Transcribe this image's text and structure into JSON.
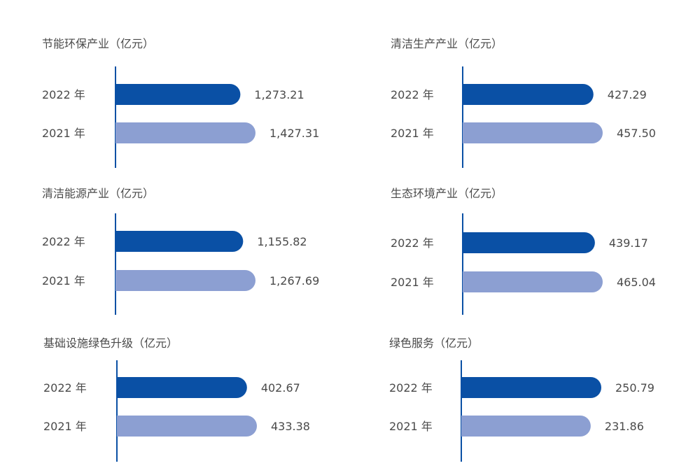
{
  "colors": {
    "bar_2022": "#0a50a5",
    "bar_2021": "#8c9fd2",
    "axis": "#0a50a5",
    "text": "#4a4a4a"
  },
  "chart_data": [
    {
      "type": "bar",
      "orientation": "horizontal",
      "title": "节能环保产业（亿元）",
      "categories": [
        "2022 年",
        "2021 年"
      ],
      "values": [
        1273.21,
        1427.31
      ],
      "labels": [
        "1,273.21",
        "1,427.31"
      ]
    },
    {
      "type": "bar",
      "orientation": "horizontal",
      "title": "清洁生产产业（亿元）",
      "categories": [
        "2022 年",
        "2021 年"
      ],
      "values": [
        427.29,
        457.5
      ],
      "labels": [
        "427.29",
        "457.50"
      ]
    },
    {
      "type": "bar",
      "orientation": "horizontal",
      "title": "清洁能源产业（亿元）",
      "categories": [
        "2022 年",
        "2021 年"
      ],
      "values": [
        1155.82,
        1267.69
      ],
      "labels": [
        "1,155.82",
        "1,267.69"
      ]
    },
    {
      "type": "bar",
      "orientation": "horizontal",
      "title": "生态环境产业（亿元）",
      "categories": [
        "2022 年",
        "2021 年"
      ],
      "values": [
        439.17,
        465.04
      ],
      "labels": [
        "439.17",
        "465.04"
      ]
    },
    {
      "type": "bar",
      "orientation": "horizontal",
      "title": "基础设施绿色升级（亿元）",
      "categories": [
        "2022 年",
        "2021 年"
      ],
      "values": [
        402.67,
        433.38
      ],
      "labels": [
        "402.67",
        "433.38"
      ]
    },
    {
      "type": "bar",
      "orientation": "horizontal",
      "title": "绿色服务（亿元）",
      "categories": [
        "2022 年",
        "2021 年"
      ],
      "values": [
        250.79,
        231.86
      ],
      "labels": [
        "250.79",
        "231.86"
      ]
    }
  ]
}
